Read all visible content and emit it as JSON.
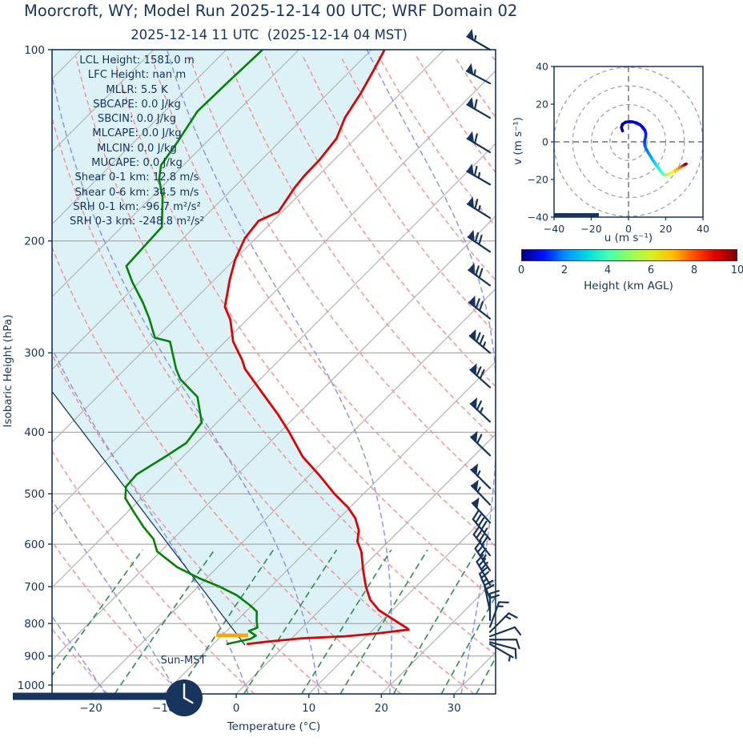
{
  "header": {
    "title": "Moorcroft, WY; Model Run 2025-12-14 00 UTC; WRF Domain 02",
    "subtitle": "2025-12-14 11 UTC  (2025-12-14 04 MST)"
  },
  "chart_data": {
    "type": "skewt-log-p-sounding",
    "pressure_axis": {
      "label": "Isobaric Height (hPa)",
      "ticks": [
        100,
        200,
        300,
        400,
        500,
        600,
        700,
        800,
        900,
        1000
      ],
      "range": [
        100,
        1032
      ]
    },
    "temp_axis": {
      "label": "Temperature (°C)",
      "ticks": [
        -20,
        -10,
        0,
        10,
        20,
        30
      ]
    },
    "indices": [
      "LCL Height: 1581.0 m",
      "LFC Height: nan m",
      "MLLR: 5.5 K",
      "SBCAPE: 0.0 J/kg",
      "SBCIN: 0.0 J/kg",
      "MLCAPE: 0.0 J/kg",
      "MLCIN: 0.0 J/kg",
      "MUCAPE: 0.0 J/kg",
      "Shear 0-1 km: 12.8 m/s",
      "Shear 0-6 km: 34.5 m/s",
      "SRH 0-1 km: -96.7 m²/s²",
      "SRH 0-3 km: -248.8 m²/s²"
    ],
    "temperature_profile": [
      [
        100,
        -68.2
      ],
      [
        107,
        -67.0
      ],
      [
        117,
        -65.5
      ],
      [
        128,
        -64.3
      ],
      [
        138,
        -62.6
      ],
      [
        149,
        -62.0
      ],
      [
        158,
        -61.9
      ],
      [
        165,
        -61.6
      ],
      [
        180,
        -60.5
      ],
      [
        186,
        -62.0
      ],
      [
        198,
        -61.5
      ],
      [
        214,
        -59.9
      ],
      [
        230,
        -57.9
      ],
      [
        254,
        -54.8
      ],
      [
        266,
        -52.3
      ],
      [
        288,
        -48.9
      ],
      [
        308,
        -45.1
      ],
      [
        318,
        -43.5
      ],
      [
        347,
        -37.8
      ],
      [
        375,
        -32.7
      ],
      [
        400,
        -28.7
      ],
      [
        437,
        -23.5
      ],
      [
        467,
        -18.7
      ],
      [
        500,
        -14.0
      ],
      [
        525,
        -10.3
      ],
      [
        546,
        -7.8
      ],
      [
        571,
        -5.6
      ],
      [
        594,
        -4.3
      ],
      [
        617,
        -2.3
      ],
      [
        660,
        0.5
      ],
      [
        700,
        3.1
      ],
      [
        734,
        5.5
      ],
      [
        762,
        8.1
      ],
      [
        790,
        11.6
      ],
      [
        812,
        14.3
      ],
      [
        818,
        14.9
      ],
      [
        829,
        11.2
      ],
      [
        838,
        7.1
      ],
      [
        844,
        1.4
      ],
      [
        855,
        -3.1
      ],
      [
        862,
        -5.4
      ]
    ],
    "dewpoint_profile": [
      [
        100,
        -85.0
      ],
      [
        112,
        -85.3
      ],
      [
        125,
        -85.5
      ],
      [
        140,
        -84.0
      ],
      [
        152,
        -83.1
      ],
      [
        160,
        -81.4
      ],
      [
        171,
        -78.4
      ],
      [
        190,
        -74.5
      ],
      [
        219,
        -74.0
      ],
      [
        232,
        -71.0
      ],
      [
        250,
        -66.7
      ],
      [
        264,
        -63.8
      ],
      [
        284,
        -60.2
      ],
      [
        288,
        -57.6
      ],
      [
        318,
        -53.0
      ],
      [
        330,
        -51.0
      ],
      [
        352,
        -46.2
      ],
      [
        386,
        -42.1
      ],
      [
        416,
        -41.4
      ],
      [
        437,
        -42.4
      ],
      [
        466,
        -43.9
      ],
      [
        487,
        -43.7
      ],
      [
        508,
        -42.2
      ],
      [
        536,
        -38.9
      ],
      [
        564,
        -35.7
      ],
      [
        589,
        -32.7
      ],
      [
        616,
        -30.5
      ],
      [
        652,
        -25.6
      ],
      [
        679,
        -21.0
      ],
      [
        699,
        -17.2
      ],
      [
        722,
        -13.5
      ],
      [
        747,
        -10.5
      ],
      [
        766,
        -8.5
      ],
      [
        793,
        -7.2
      ],
      [
        812,
        -6.2
      ],
      [
        822,
        -6.9
      ],
      [
        836,
        -5.3
      ],
      [
        846,
        -5.6
      ],
      [
        862,
        -8.2
      ]
    ],
    "parcel_trace": [
      [
        865,
        -5.5
      ],
      [
        346,
        -66.8
      ]
    ],
    "lcl_marker": {
      "pressure": 835,
      "t_from": -10.8,
      "t_to": -6.4,
      "color": "#ffa500"
    },
    "grid": {
      "isotherms": {
        "start": -120,
        "end": 40,
        "step": 10
      },
      "dry_adiabats": {
        "start": -30,
        "end": 160,
        "step": 10
      },
      "moist_adiabats": {
        "start": -60,
        "end": 40,
        "step": 10
      },
      "mixing_ratios": [
        0.4,
        1,
        2,
        4,
        7,
        10,
        16,
        24,
        32
      ]
    },
    "wind_barbs": [
      [
        100,
        27,
        300
      ],
      [
        113,
        28,
        298
      ],
      [
        128,
        30,
        300
      ],
      [
        145,
        30,
        301
      ],
      [
        163,
        32,
        300
      ],
      [
        184,
        33,
        302
      ],
      [
        208,
        35,
        304
      ],
      [
        235,
        35,
        306
      ],
      [
        265,
        35,
        308
      ],
      [
        300,
        37,
        310
      ],
      [
        340,
        35,
        312
      ],
      [
        385,
        33,
        313
      ],
      [
        435,
        30,
        314
      ],
      [
        490,
        28,
        315
      ],
      [
        520,
        27,
        316
      ],
      [
        555,
        25,
        318
      ],
      [
        590,
        22,
        320
      ],
      [
        625,
        20,
        322
      ],
      [
        660,
        18,
        326
      ],
      [
        695,
        15,
        330
      ],
      [
        730,
        13,
        337
      ],
      [
        765,
        11,
        348
      ],
      [
        790,
        9,
        0
      ],
      [
        810,
        8,
        20
      ],
      [
        825,
        7,
        45
      ],
      [
        838,
        6,
        70
      ],
      [
        848,
        5,
        90
      ],
      [
        856,
        4,
        105
      ],
      [
        862,
        3,
        120
      ]
    ],
    "sun_marker": {
      "label": "Sun-MST",
      "clock_hour": 4
    },
    "hodograph": {
      "xlabel": "u (m s⁻¹)",
      "ylabel": "v (m s⁻¹)",
      "xlim": [
        -40,
        40
      ],
      "ylim": [
        -40,
        40
      ],
      "ticks": [
        -40,
        -20,
        0,
        20,
        40
      ],
      "rings": [
        10,
        20,
        30,
        40
      ],
      "trace": [
        [
          -3.2,
          5.8,
          0
        ],
        [
          -3.8,
          7.6,
          0.1
        ],
        [
          -3.2,
          9.4,
          0.25
        ],
        [
          -1.6,
          10.4,
          0.4
        ],
        [
          0.2,
          10.7,
          0.55
        ],
        [
          2.2,
          10.6,
          0.7
        ],
        [
          4.2,
          10.1,
          0.85
        ],
        [
          6.0,
          9.2,
          1.0
        ],
        [
          7.6,
          7.8,
          1.15
        ],
        [
          8.8,
          6.2,
          1.3
        ],
        [
          9.3,
          4.4,
          1.45
        ],
        [
          9.2,
          2.6,
          1.6
        ],
        [
          8.8,
          1.0,
          1.75
        ],
        [
          8.6,
          -0.5,
          1.9
        ],
        [
          8.8,
          -2.1,
          2.1
        ],
        [
          9.5,
          -3.8,
          2.3
        ],
        [
          10.5,
          -5.6,
          2.5
        ],
        [
          11.7,
          -7.5,
          2.75
        ],
        [
          12.9,
          -9.4,
          3.0
        ],
        [
          14.1,
          -11.2,
          3.25
        ],
        [
          15.3,
          -12.9,
          3.5
        ],
        [
          16.5,
          -14.5,
          3.8
        ],
        [
          17.5,
          -15.9,
          4.1
        ],
        [
          18.5,
          -17.0,
          4.5
        ],
        [
          19.5,
          -17.6,
          4.9
        ],
        [
          20.7,
          -17.5,
          5.3
        ],
        [
          22.1,
          -16.9,
          5.7
        ],
        [
          23.5,
          -16.1,
          6.1
        ],
        [
          24.9,
          -15.3,
          6.5
        ],
        [
          26.2,
          -14.5,
          6.9
        ],
        [
          27.4,
          -13.8,
          7.3
        ],
        [
          28.5,
          -13.1,
          7.8
        ],
        [
          29.4,
          -12.6,
          8.3
        ],
        [
          30.1,
          -12.2,
          8.8
        ],
        [
          30.6,
          -11.9,
          9.4
        ],
        [
          31.0,
          -11.7,
          10
        ]
      ]
    },
    "colorbar": {
      "label": "Height (km AGL)",
      "ticks": [
        0,
        2,
        4,
        6,
        8,
        10
      ],
      "range": [
        0,
        10
      ],
      "colors": [
        "#000080",
        "#0010ff",
        "#0090ff",
        "#00d8e0",
        "#40ffb0",
        "#90ff60",
        "#d8f020",
        "#ffc000",
        "#ff5000",
        "#e00000",
        "#800000"
      ]
    },
    "styles": {
      "temperature_color": "#e30000",
      "dewpoint_color": "#058205",
      "shade_color": "#dcf2f6",
      "parcel_color": "#1b3a63",
      "barb_color": "#16345e",
      "text_color": "#14345f",
      "isotherm_color": "#b3b3b3",
      "dry_adiabat_color": "#f38b8b",
      "moist_adiabat_color": "#8890e8",
      "mixing_line_color": "#2d8a50"
    }
  }
}
